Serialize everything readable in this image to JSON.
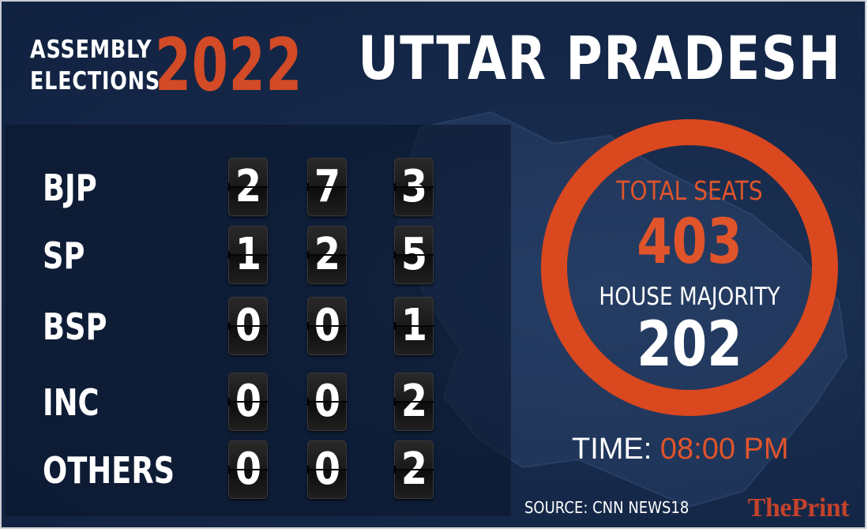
{
  "header": {
    "line1": "ASSEMBLY",
    "line2": "ELECTIONS",
    "year": "2022",
    "state": "UTTAR PRADESH"
  },
  "parties": [
    {
      "name": "BJP",
      "digits": [
        "2",
        "7",
        "3"
      ]
    },
    {
      "name": "SP",
      "digits": [
        "1",
        "2",
        "5"
      ]
    },
    {
      "name": "BSP",
      "digits": [
        "0",
        "0",
        "1"
      ]
    },
    {
      "name": "INC",
      "digits": [
        "0",
        "0",
        "2"
      ]
    },
    {
      "name": "OTHERS",
      "digits": [
        "0",
        "0",
        "2"
      ]
    }
  ],
  "summary": {
    "total_label": "TOTAL SEATS",
    "total_value": "403",
    "majority_label": "HOUSE MAJORITY",
    "majority_value": "202"
  },
  "time": {
    "label": "TIME:",
    "value": "08:00 PM"
  },
  "source": "SOURCE: CNN NEWS18",
  "logo": "ThePrint",
  "colors": {
    "background": "#16294a",
    "accent": "#d9481f",
    "text": "#ffffff"
  }
}
